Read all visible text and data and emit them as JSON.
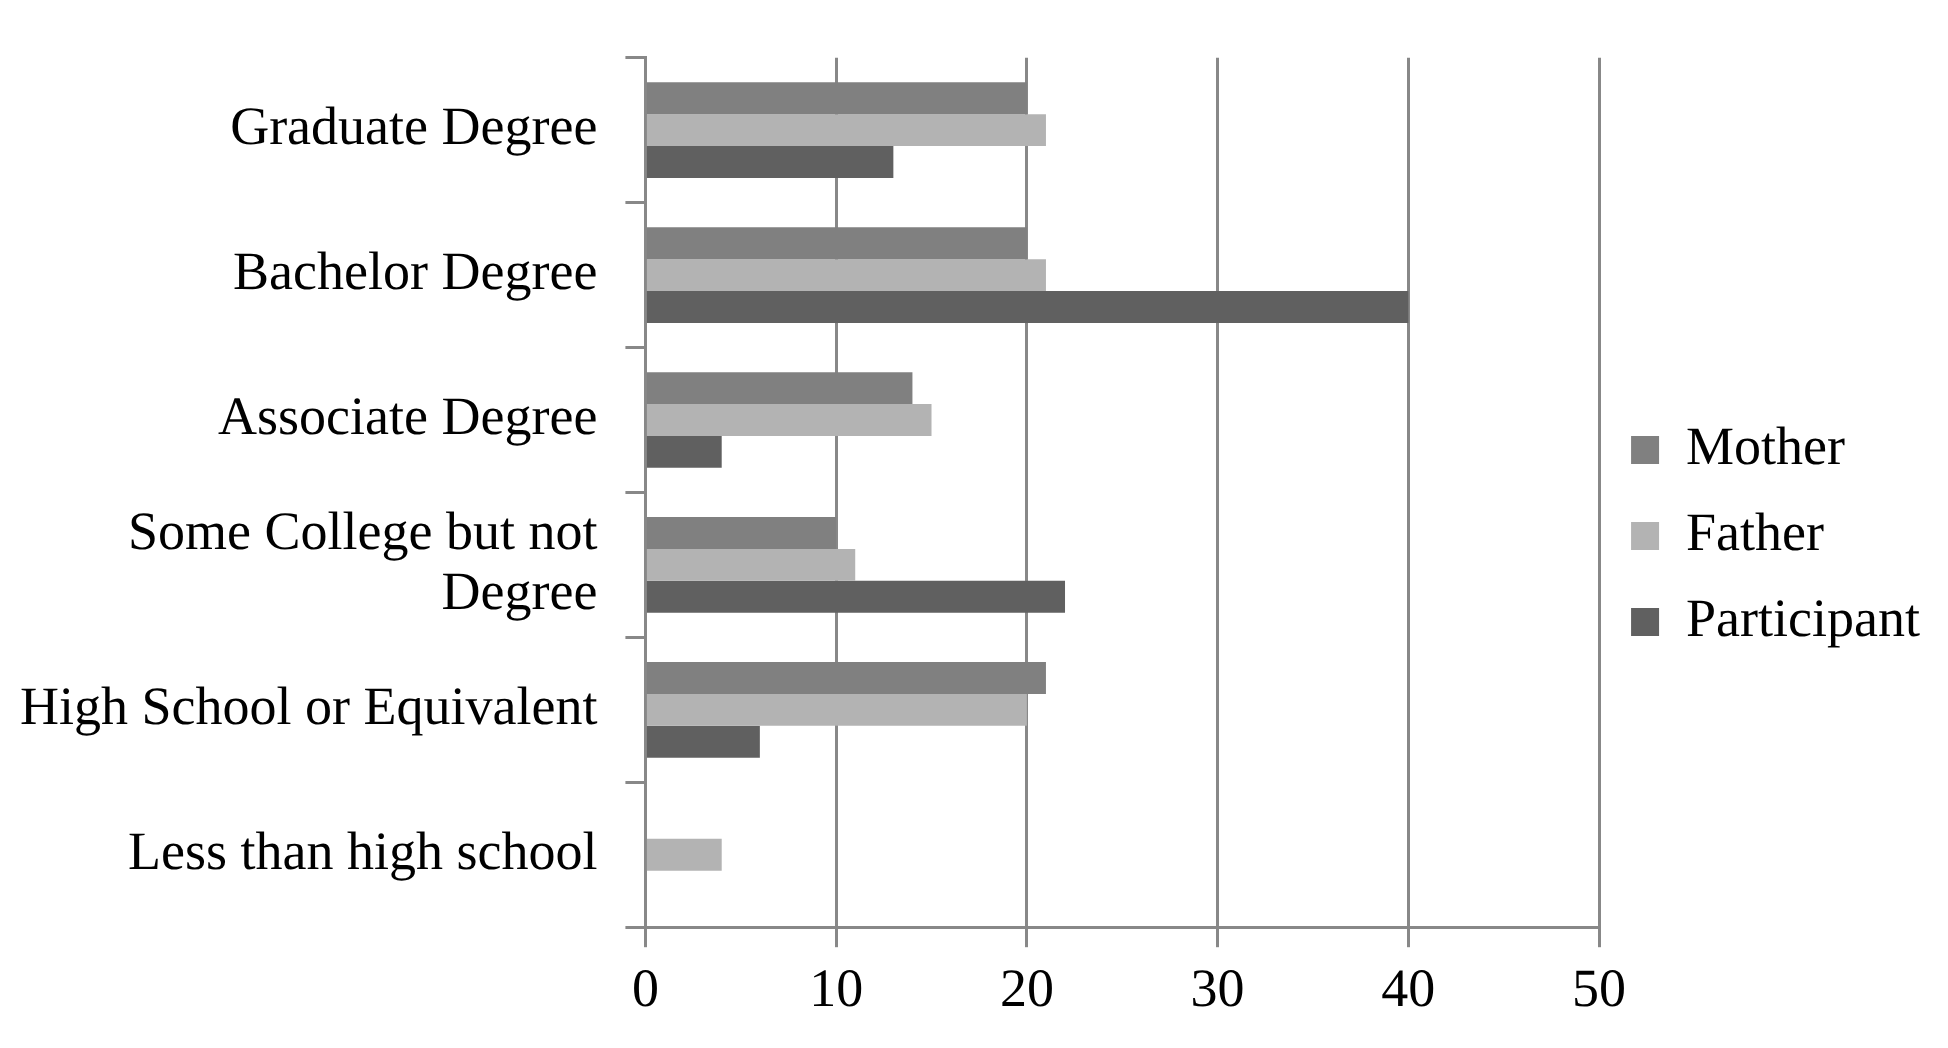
{
  "chart_data": {
    "type": "bar",
    "orientation": "horizontal",
    "categories": [
      "Graduate Degree",
      "Bachelor Degree",
      "Associate Degree",
      "Some College but not Degree",
      "High School or Equivalent",
      "Less than high school"
    ],
    "series": [
      {
        "name": "Mother",
        "color": "#808080",
        "values": [
          20,
          20,
          14,
          10,
          21,
          0
        ]
      },
      {
        "name": "Father",
        "color": "#b3b3b3",
        "values": [
          21,
          21,
          15,
          11,
          20,
          4
        ]
      },
      {
        "name": "Participant",
        "color": "#606060",
        "values": [
          13,
          40,
          4,
          22,
          6,
          0
        ]
      }
    ],
    "xlim": [
      0,
      50
    ],
    "xticks": [
      0,
      10,
      20,
      30,
      40,
      50
    ],
    "grid": "x",
    "legend": "right"
  }
}
